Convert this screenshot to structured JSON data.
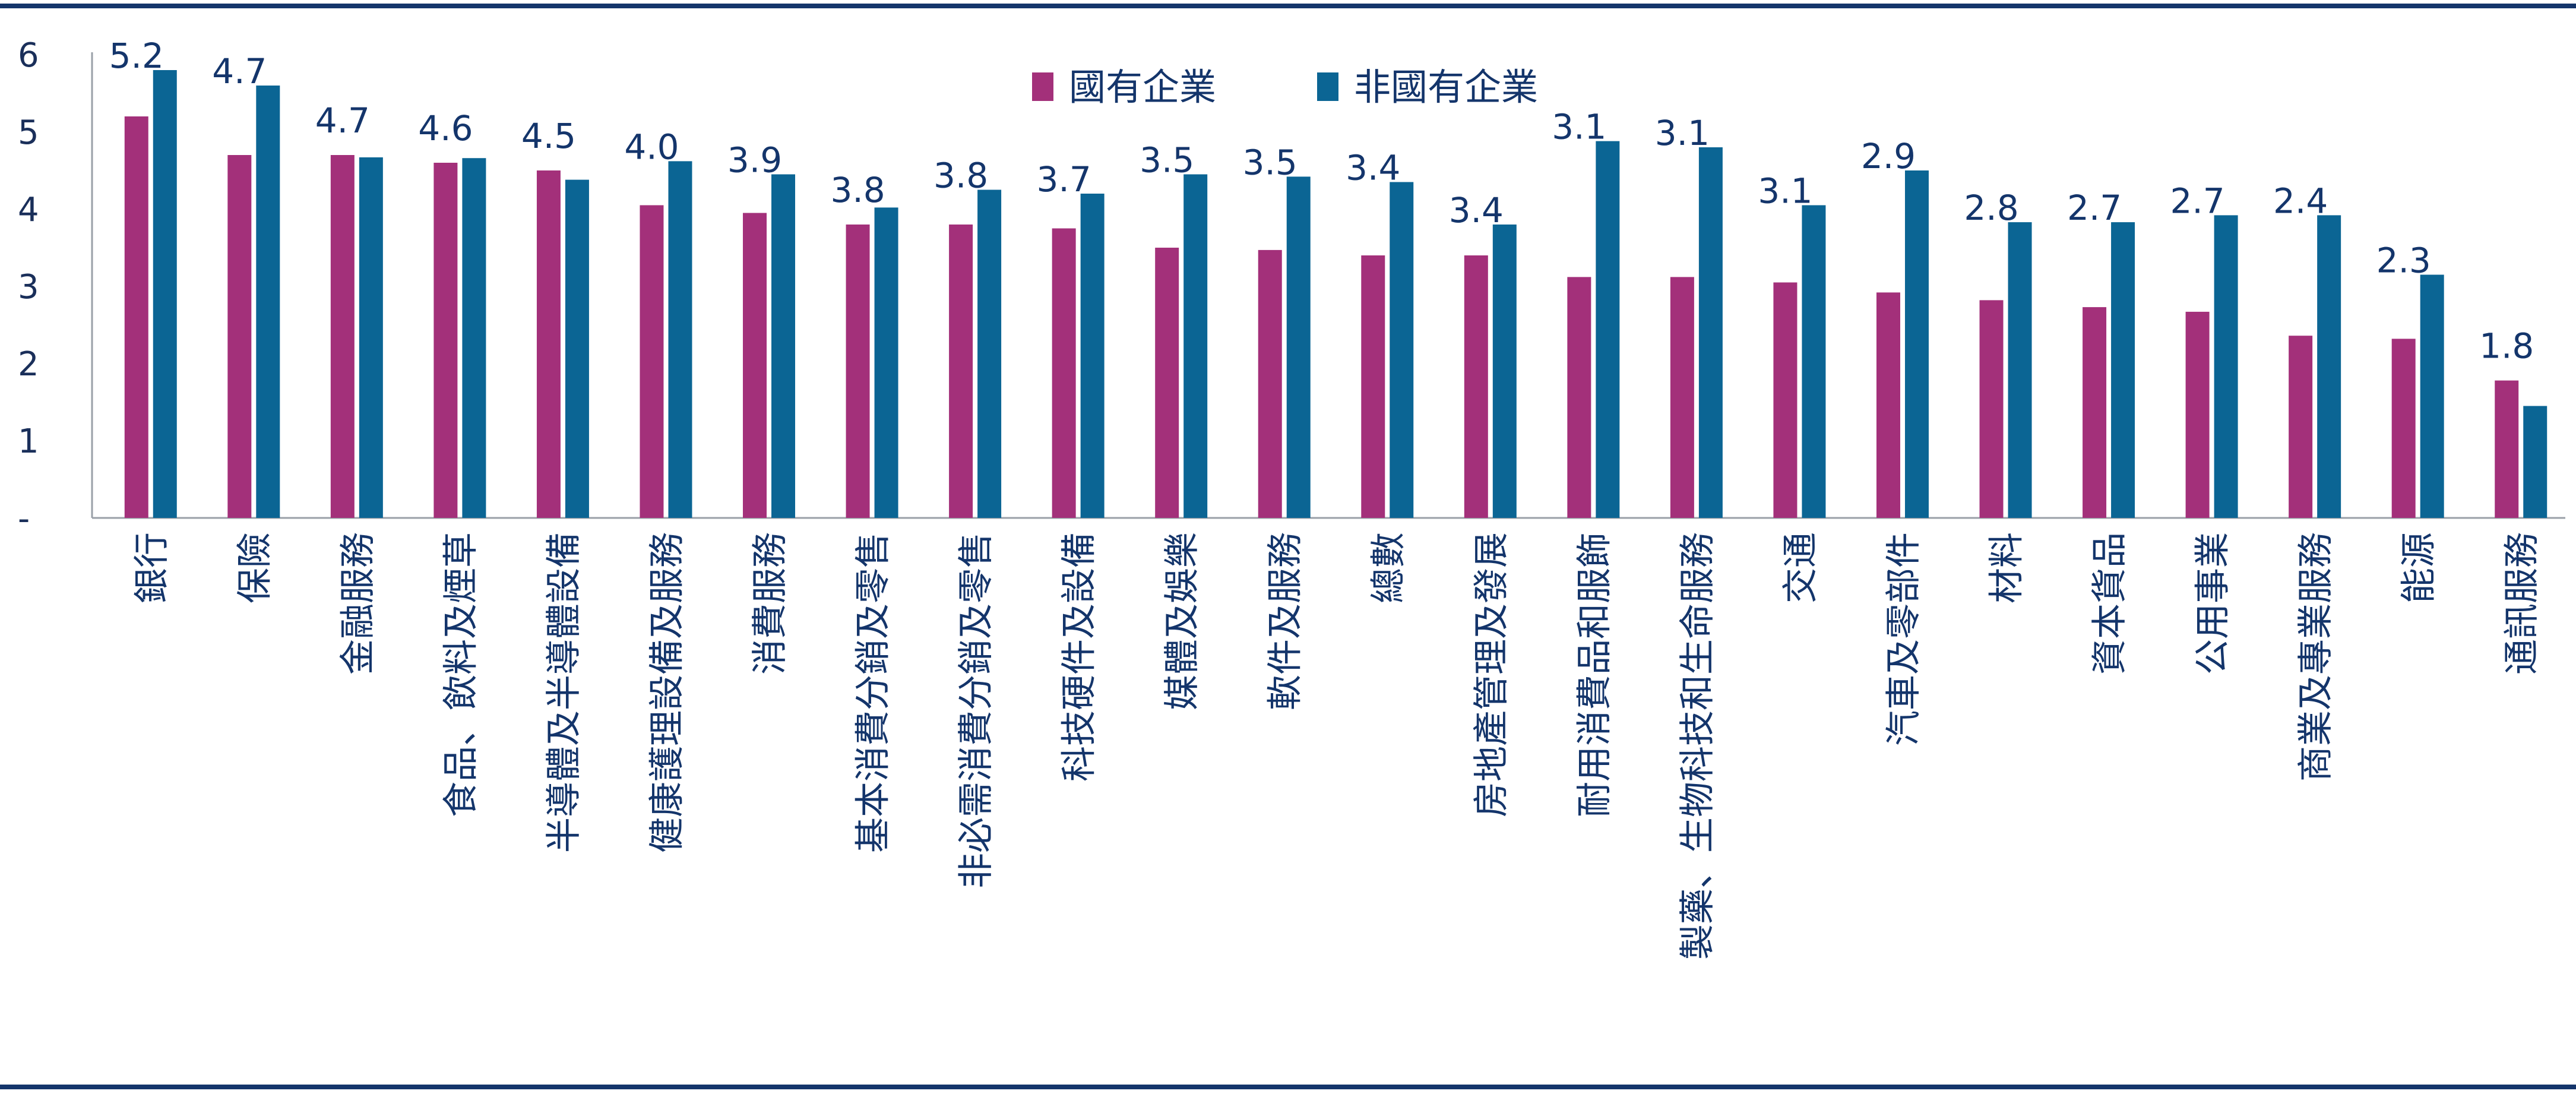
{
  "chart_data": {
    "type": "bar",
    "ylim": [
      0,
      6
    ],
    "yticks": [
      "-",
      "1",
      "2",
      "3",
      "4",
      "5",
      "6"
    ],
    "legend_position": "top-center",
    "categories": [
      "銀行",
      "保險",
      "金融服務",
      "食品、飲料及煙草",
      "半導體及半導體設備",
      "健康護理設備及服務",
      "消費服務",
      "基本消費分銷及零售",
      "非必需消費分銷及零售",
      "科技硬件及設備",
      "媒體及娛樂",
      "軟件及服務",
      "總數",
      "房地產管理及發展",
      "耐用消費品和服飾",
      "製藥、生物科技和生命服務",
      "交通",
      "汽車及零部件",
      "材料",
      "資本貨品",
      "公用事業",
      "商業及專業服務",
      "能源",
      "通訊服務"
    ],
    "series": [
      {
        "name": "國有企業",
        "color": "#a3307a",
        "values": [
          5.2,
          4.7,
          4.7,
          4.6,
          4.5,
          4.05,
          3.95,
          3.8,
          3.8,
          3.75,
          3.5,
          3.47,
          3.4,
          3.4,
          3.12,
          3.12,
          3.05,
          2.92,
          2.82,
          2.73,
          2.67,
          2.36,
          2.32,
          1.78
        ]
      },
      {
        "name": "非國有企業",
        "color": "#0b6594",
        "values": [
          5.8,
          5.6,
          4.67,
          4.66,
          4.38,
          4.62,
          4.45,
          4.02,
          4.25,
          4.2,
          4.45,
          4.42,
          4.35,
          3.8,
          4.88,
          4.8,
          4.05,
          4.5,
          3.83,
          3.83,
          3.92,
          3.92,
          3.15,
          1.45
        ]
      }
    ],
    "data_labels": [
      "5.2",
      "4.7",
      "4.7",
      "4.6",
      "4.5",
      "4.0",
      "3.9",
      "3.8",
      "3.8",
      "3.7",
      "3.5",
      "3.5",
      "3.4",
      "3.4",
      "3.1",
      "3.1",
      "3.1",
      "2.9",
      "2.8",
      "2.7",
      "2.7",
      "2.4",
      "2.3",
      "1.8"
    ]
  }
}
